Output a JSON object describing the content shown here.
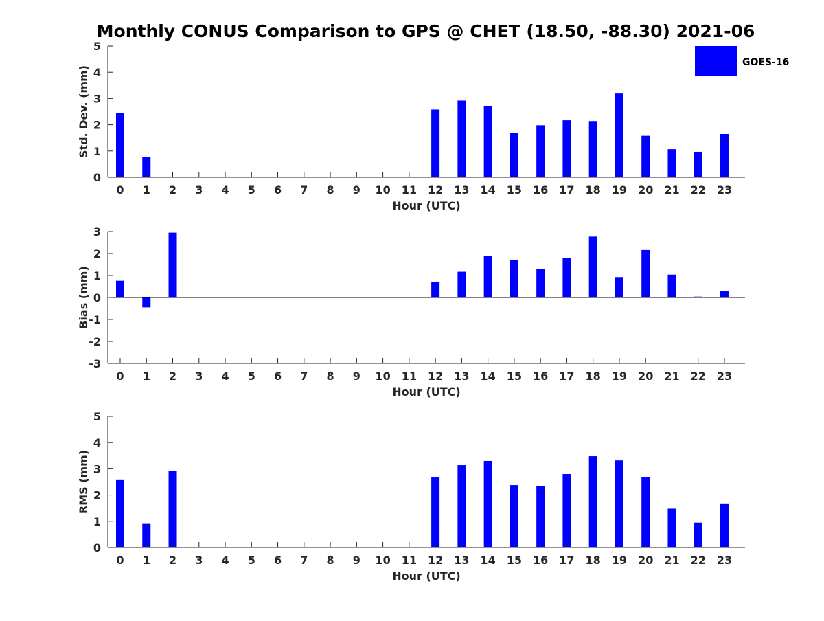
{
  "figure": {
    "title": "Monthly CONUS Comparison to GPS @ CHET (18.50, -88.30) 2021-06"
  },
  "legend": {
    "label": "GOES-16",
    "color": "#0000ff",
    "placement": "top-right"
  },
  "chart_data": [
    {
      "type": "bar",
      "xlabel": "Hour (UTC)",
      "ylabel": "Std. Dev. (mm)",
      "ylim": [
        0,
        5
      ],
      "yticks": [
        0,
        1,
        2,
        3,
        4,
        5
      ],
      "categories": [
        "0",
        "1",
        "2",
        "3",
        "4",
        "5",
        "6",
        "7",
        "8",
        "9",
        "10",
        "11",
        "12",
        "13",
        "14",
        "15",
        "16",
        "17",
        "18",
        "19",
        "20",
        "21",
        "22",
        "23"
      ],
      "series": [
        {
          "name": "GOES-16",
          "color": "#0000ff",
          "values": [
            2.45,
            0.78,
            null,
            null,
            null,
            null,
            null,
            null,
            null,
            null,
            null,
            null,
            2.58,
            2.92,
            2.72,
            1.7,
            1.98,
            2.17,
            2.14,
            3.19,
            1.58,
            1.07,
            0.97,
            1.65
          ]
        }
      ],
      "grid": false
    },
    {
      "type": "bar",
      "xlabel": "Hour (UTC)",
      "ylabel": "Bias (mm)",
      "ylim": [
        -3,
        3
      ],
      "yticks": [
        -3,
        -2,
        -1,
        0,
        1,
        2,
        3
      ],
      "categories": [
        "0",
        "1",
        "2",
        "3",
        "4",
        "5",
        "6",
        "7",
        "8",
        "9",
        "10",
        "11",
        "12",
        "13",
        "14",
        "15",
        "16",
        "17",
        "18",
        "19",
        "20",
        "21",
        "22",
        "23"
      ],
      "series": [
        {
          "name": "GOES-16",
          "color": "#0000ff",
          "values": [
            0.76,
            -0.45,
            2.95,
            null,
            null,
            null,
            null,
            null,
            null,
            null,
            null,
            null,
            0.7,
            1.17,
            1.88,
            1.7,
            1.3,
            1.8,
            2.77,
            0.93,
            2.16,
            1.04,
            0.04,
            0.28
          ]
        }
      ],
      "grid": false
    },
    {
      "type": "bar",
      "xlabel": "Hour (UTC)",
      "ylabel": "RMS (mm)",
      "ylim": [
        0,
        5
      ],
      "yticks": [
        0,
        1,
        2,
        3,
        4,
        5
      ],
      "categories": [
        "0",
        "1",
        "2",
        "3",
        "4",
        "5",
        "6",
        "7",
        "8",
        "9",
        "10",
        "11",
        "12",
        "13",
        "14",
        "15",
        "16",
        "17",
        "18",
        "19",
        "20",
        "21",
        "22",
        "23"
      ],
      "series": [
        {
          "name": "GOES-16",
          "color": "#0000ff",
          "values": [
            2.57,
            0.9,
            2.93,
            null,
            null,
            null,
            null,
            null,
            null,
            null,
            null,
            null,
            2.67,
            3.14,
            3.3,
            2.38,
            2.35,
            2.8,
            3.48,
            3.32,
            2.67,
            1.48,
            0.95,
            1.68
          ]
        }
      ],
      "grid": false
    }
  ]
}
